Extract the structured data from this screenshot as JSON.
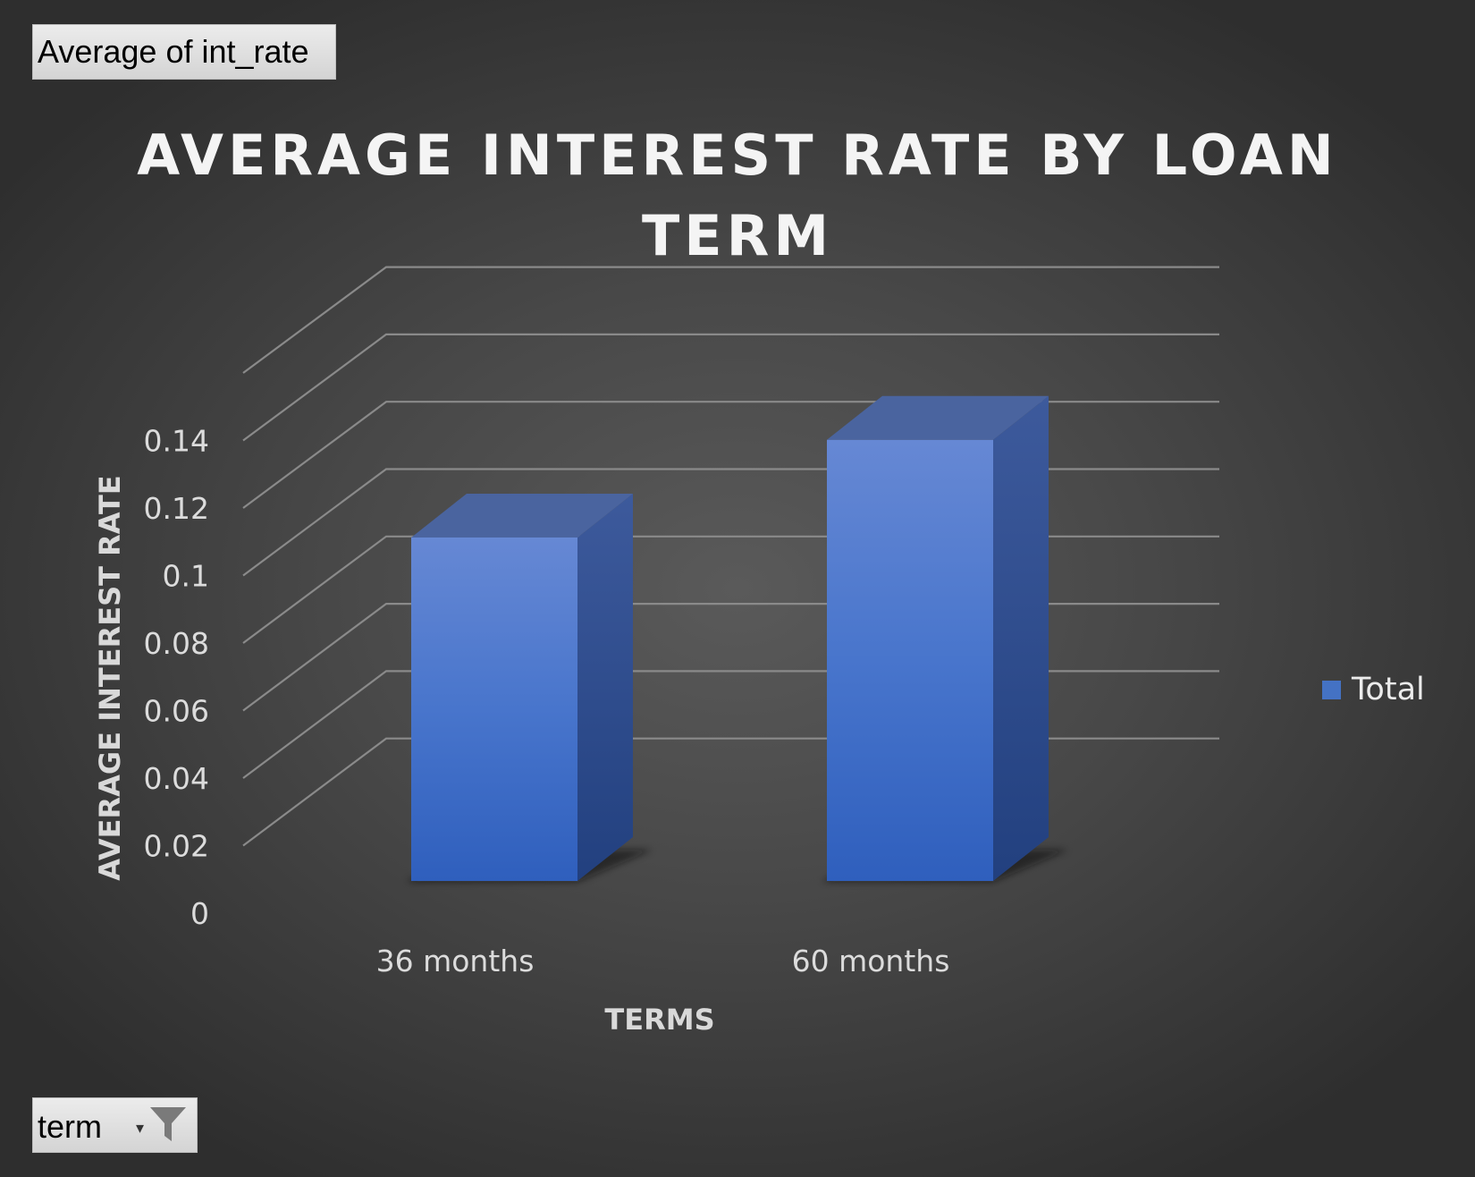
{
  "pivot": {
    "value_field_label": "Average  of int_rate",
    "filter_field_label": "term"
  },
  "chart_data": {
    "type": "bar",
    "style": "3d-clustered-column",
    "title": "AVERAGE INTEREST RATE BY LOAN TERM",
    "title_lines": [
      "AVERAGE INTEREST RATE BY LOAN",
      "TERM"
    ],
    "xlabel": "TERMS",
    "ylabel": "AVERAGE INTEREST RATE",
    "categories": [
      "36 months",
      "60 months"
    ],
    "series": [
      {
        "name": "Total",
        "values": [
          0.102,
          0.131
        ],
        "color": "#4472c4"
      }
    ],
    "ylim": [
      0,
      0.14
    ],
    "yticks": [
      "0",
      "0.02",
      "0.04",
      "0.06",
      "0.08",
      "0.1",
      "0.12",
      "0.14"
    ],
    "grid": true,
    "legend": "right",
    "colors": {
      "background": "#4a4a4a",
      "grid": "#8a8a8a",
      "bar": "#4472c4"
    }
  }
}
